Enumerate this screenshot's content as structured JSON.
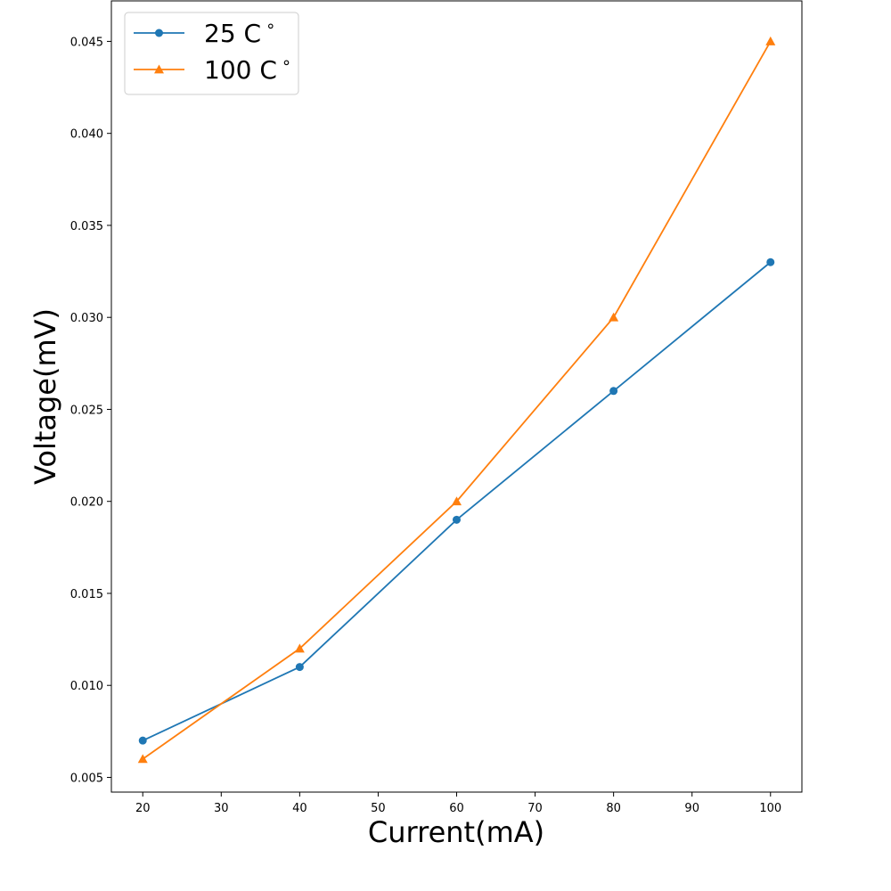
{
  "chart_data": {
    "type": "line",
    "title": "",
    "xlabel": "Current(mA)",
    "ylabel": "Voltage(mV)",
    "xlim": [
      16,
      104
    ],
    "ylim": [
      0.0042,
      0.0472
    ],
    "x_ticks": [
      "20",
      "30",
      "40",
      "50",
      "60",
      "70",
      "80",
      "90",
      "100"
    ],
    "y_ticks": [
      "0.005",
      "0.010",
      "0.015",
      "0.020",
      "0.025",
      "0.030",
      "0.035",
      "0.040",
      "0.045"
    ],
    "grid": false,
    "legend": "top-left",
    "x": [
      20,
      40,
      60,
      80,
      100
    ],
    "series": [
      {
        "name": "25 C$^\\circ$",
        "label": "25 C",
        "values": [
          0.007,
          0.011,
          0.019,
          0.026,
          0.033
        ],
        "color": "#1f77b4",
        "marker": "circle"
      },
      {
        "name": "100 C$^\\circ$",
        "label": "100 C",
        "values": [
          0.006,
          0.012,
          0.02,
          0.03,
          0.045
        ],
        "color": "#ff7f0e",
        "marker": "triangle"
      }
    ]
  }
}
